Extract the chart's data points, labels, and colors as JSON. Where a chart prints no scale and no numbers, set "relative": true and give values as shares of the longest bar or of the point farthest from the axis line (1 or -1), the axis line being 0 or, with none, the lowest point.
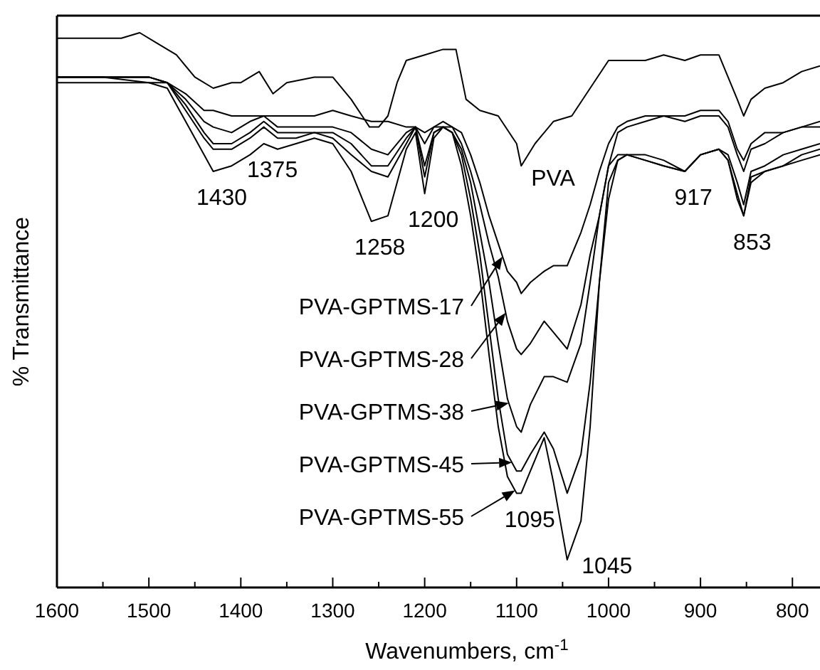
{
  "chart_data": {
    "type": "line",
    "xlabel": "Wavenumbers, cm$^{-1}$",
    "ylabel": "% Transmittance",
    "relative": true,
    "xlim": [
      1600,
      770
    ],
    "xticks": [
      1600,
      {
        "value": 1550,
        "label": null
      },
      1500,
      {
        "value": 1450,
        "label": null
      },
      1400,
      {
        "value": 1350,
        "label": null
      },
      1300,
      {
        "value": 1250,
        "label": null
      },
      1200,
      {
        "value": 1150,
        "label": null
      },
      1100,
      {
        "value": 1050,
        "label": null
      },
      1000,
      {
        "value": 950,
        "label": null
      },
      900,
      {
        "value": 850,
        "label": null
      },
      800
    ],
    "x": [
      1600,
      1550,
      1500,
      1480,
      1460,
      1440,
      1430,
      1410,
      1390,
      1375,
      1360,
      1340,
      1320,
      1300,
      1280,
      1258,
      1240,
      1220,
      1210,
      1200,
      1190,
      1180,
      1170,
      1160,
      1150,
      1140,
      1130,
      1120,
      1110,
      1100,
      1095,
      1085,
      1070,
      1060,
      1045,
      1030,
      1020,
      1010,
      1000,
      990,
      980,
      960,
      940,
      917,
      900,
      880,
      870,
      860,
      853,
      845,
      830,
      810,
      790,
      770
    ],
    "series": [
      {
        "name": "PVA",
        "color": "#000000",
        "x": [
          1600,
          1560,
          1530,
          1510,
          1490,
          1470,
          1450,
          1430,
          1410,
          1400,
          1380,
          1365,
          1350,
          1320,
          1300,
          1280,
          1260,
          1250,
          1240,
          1230,
          1220,
          1200,
          1180,
          1166,
          1155,
          1140,
          1120,
          1100,
          1095,
          1080,
          1060,
          1040,
          1020,
          1000,
          980,
          960,
          940,
          917,
          900,
          880,
          870,
          860,
          853,
          845,
          830,
          810,
          790,
          770
        ],
        "values": [
          0.99,
          0.99,
          0.99,
          1.0,
          0.98,
          0.96,
          0.92,
          0.9,
          0.91,
          0.91,
          0.93,
          0.89,
          0.91,
          0.92,
          0.92,
          0.88,
          0.83,
          0.83,
          0.85,
          0.91,
          0.95,
          0.96,
          0.97,
          0.97,
          0.88,
          0.86,
          0.85,
          0.8,
          0.76,
          0.8,
          0.84,
          0.85,
          0.9,
          0.95,
          0.95,
          0.95,
          0.96,
          0.95,
          0.96,
          0.96,
          0.92,
          0.88,
          0.85,
          0.88,
          0.9,
          0.91,
          0.93,
          0.94
        ]
      },
      {
        "name": "PVA-GPTMS-17",
        "color": "#000000",
        "values": [
          0.92,
          0.92,
          0.92,
          0.91,
          0.89,
          0.86,
          0.86,
          0.85,
          0.85,
          0.85,
          0.85,
          0.85,
          0.85,
          0.86,
          0.85,
          0.84,
          0.84,
          0.83,
          0.83,
          0.82,
          0.83,
          0.84,
          0.83,
          0.82,
          0.78,
          0.73,
          0.67,
          0.62,
          0.57,
          0.55,
          0.53,
          0.55,
          0.57,
          0.58,
          0.58,
          0.64,
          0.69,
          0.75,
          0.8,
          0.83,
          0.84,
          0.85,
          0.85,
          0.85,
          0.86,
          0.86,
          0.84,
          0.79,
          0.77,
          0.8,
          0.82,
          0.82,
          0.83,
          0.84
        ]
      },
      {
        "name": "PVA-GPTMS-28",
        "color": "#000000",
        "values": [
          0.92,
          0.92,
          0.92,
          0.91,
          0.88,
          0.84,
          0.83,
          0.82,
          0.84,
          0.85,
          0.83,
          0.83,
          0.83,
          0.83,
          0.82,
          0.79,
          0.78,
          0.82,
          0.83,
          0.8,
          0.83,
          0.83,
          0.83,
          0.8,
          0.75,
          0.69,
          0.62,
          0.56,
          0.48,
          0.43,
          0.42,
          0.44,
          0.48,
          0.46,
          0.43,
          0.51,
          0.6,
          0.67,
          0.76,
          0.82,
          0.83,
          0.84,
          0.85,
          0.84,
          0.85,
          0.85,
          0.83,
          0.78,
          0.75,
          0.79,
          0.8,
          0.82,
          0.83,
          0.83
        ]
      },
      {
        "name": "PVA-GPTMS-38",
        "color": "#000000",
        "values": [
          0.92,
          0.92,
          0.92,
          0.91,
          0.87,
          0.82,
          0.8,
          0.8,
          0.82,
          0.84,
          0.82,
          0.82,
          0.82,
          0.82,
          0.8,
          0.76,
          0.76,
          0.81,
          0.83,
          0.76,
          0.82,
          0.83,
          0.82,
          0.79,
          0.73,
          0.64,
          0.55,
          0.44,
          0.34,
          0.29,
          0.28,
          0.33,
          0.38,
          0.38,
          0.37,
          0.44,
          0.55,
          0.67,
          0.76,
          0.78,
          0.78,
          0.78,
          0.77,
          0.75,
          0.78,
          0.79,
          0.78,
          0.73,
          0.69,
          0.75,
          0.76,
          0.78,
          0.79,
          0.8
        ]
      },
      {
        "name": "PVA-GPTMS-45",
        "color": "#000000",
        "values": [
          0.92,
          0.92,
          0.91,
          0.91,
          0.86,
          0.81,
          0.79,
          0.79,
          0.81,
          0.83,
          0.81,
          0.81,
          0.82,
          0.81,
          0.78,
          0.75,
          0.74,
          0.8,
          0.83,
          0.74,
          0.82,
          0.83,
          0.82,
          0.78,
          0.7,
          0.6,
          0.47,
          0.34,
          0.24,
          0.21,
          0.21,
          0.24,
          0.28,
          0.25,
          0.17,
          0.24,
          0.37,
          0.55,
          0.7,
          0.77,
          0.78,
          0.77,
          0.76,
          0.75,
          0.78,
          0.79,
          0.77,
          0.71,
          0.67,
          0.74,
          0.75,
          0.76,
          0.78,
          0.79
        ]
      },
      {
        "name": "PVA-GPTMS-55",
        "color": "#000000",
        "values": [
          0.91,
          0.91,
          0.91,
          0.9,
          0.84,
          0.78,
          0.75,
          0.76,
          0.78,
          0.8,
          0.79,
          0.8,
          0.81,
          0.8,
          0.75,
          0.66,
          0.67,
          0.79,
          0.82,
          0.71,
          0.81,
          0.83,
          0.82,
          0.76,
          0.67,
          0.56,
          0.42,
          0.29,
          0.2,
          0.17,
          0.17,
          0.21,
          0.27,
          0.19,
          0.05,
          0.12,
          0.29,
          0.55,
          0.73,
          0.77,
          0.78,
          0.77,
          0.76,
          0.75,
          0.78,
          0.79,
          0.77,
          0.7,
          0.67,
          0.73,
          0.75,
          0.76,
          0.77,
          0.78
        ]
      }
    ],
    "annotations": [
      {
        "text": "1430",
        "x": 1430,
        "y": 0.75
      },
      {
        "text": "1375",
        "x": 1375,
        "y": 0.8
      },
      {
        "text": "1258",
        "x": 1258,
        "y": 0.66
      },
      {
        "text": "1200",
        "x": 1200,
        "y": 0.71
      },
      {
        "text": "917",
        "x": 917,
        "y": 0.75
      },
      {
        "text": "853",
        "x": 853,
        "y": 0.67
      },
      {
        "text": "1095",
        "x": 1095,
        "y": 0.17
      },
      {
        "text": "1045",
        "x": 1045,
        "y": 0.05
      }
    ],
    "legend": "center"
  }
}
